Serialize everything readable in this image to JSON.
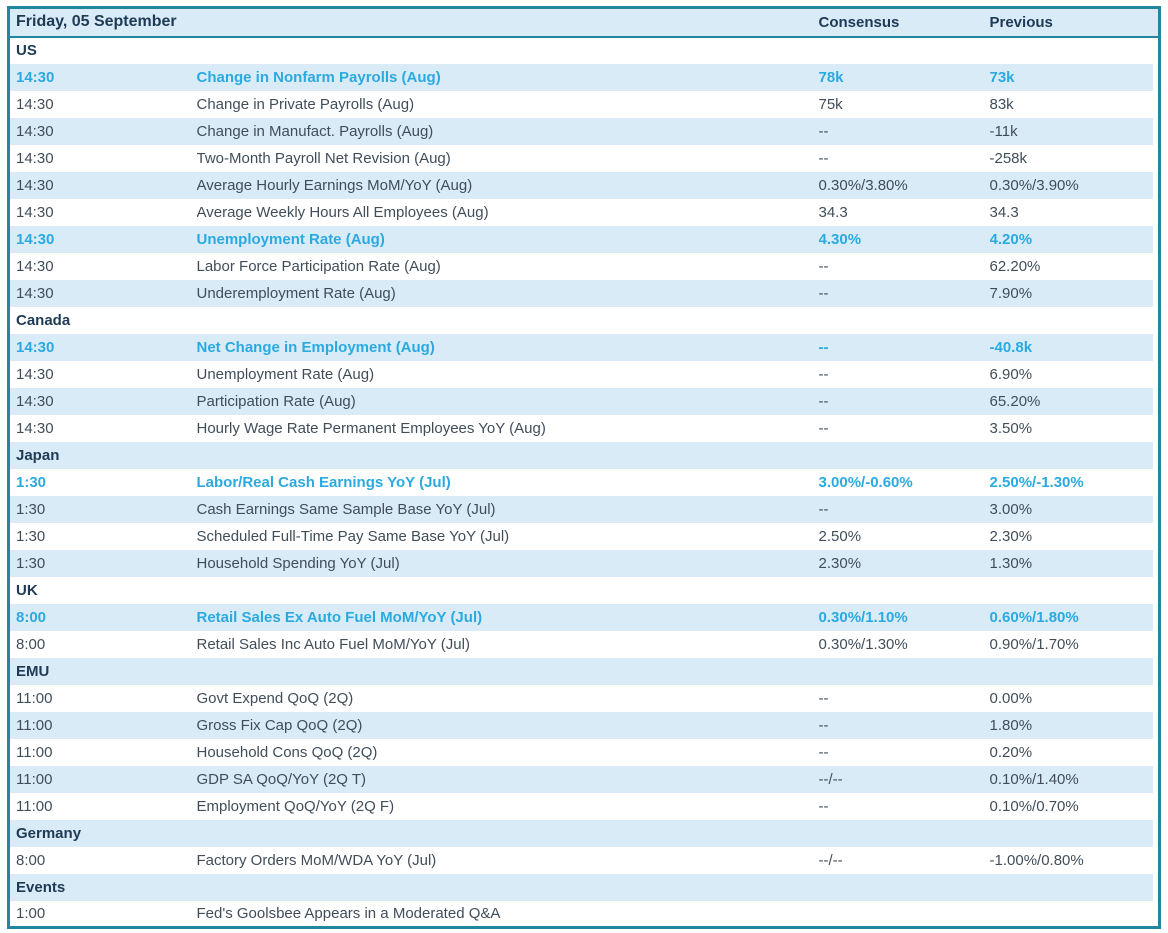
{
  "table": {
    "date_header": "Friday, 05 September",
    "columns": {
      "consensus": "Consensus",
      "previous": "Previous"
    },
    "colors": {
      "border_teal": "#21869e",
      "row_stripe_blue": "#d9ebf7",
      "header_navy": "#1e3a55",
      "body_text": "#414e5a",
      "highlight_cyan": "#2baae1",
      "row_white": "#ffffff"
    },
    "rows": [
      {
        "type": "section",
        "label": "US"
      },
      {
        "type": "event",
        "time": "14:30",
        "event": "Change in Nonfarm Payrolls (Aug)",
        "consensus": "78k",
        "previous": "73k",
        "highlight": true
      },
      {
        "type": "event",
        "time": "14:30",
        "event": "Change in Private Payrolls (Aug)",
        "consensus": "75k",
        "previous": "83k",
        "highlight": false
      },
      {
        "type": "event",
        "time": "14:30",
        "event": "Change in Manufact. Payrolls (Aug)",
        "consensus": "--",
        "previous": "-11k",
        "highlight": false
      },
      {
        "type": "event",
        "time": "14:30",
        "event": "Two-Month Payroll Net Revision (Aug)",
        "consensus": "--",
        "previous": "-258k",
        "highlight": false
      },
      {
        "type": "event",
        "time": "14:30",
        "event": "Average Hourly Earnings MoM/YoY (Aug)",
        "consensus": "0.30%/3.80%",
        "previous": "0.30%/3.90%",
        "highlight": false
      },
      {
        "type": "event",
        "time": "14:30",
        "event": "Average Weekly Hours All Employees (Aug)",
        "consensus": "34.3",
        "previous": "34.3",
        "highlight": false
      },
      {
        "type": "event",
        "time": "14:30",
        "event": "Unemployment Rate (Aug)",
        "consensus": "4.30%",
        "previous": "4.20%",
        "highlight": true
      },
      {
        "type": "event",
        "time": "14:30",
        "event": "Labor Force Participation Rate (Aug)",
        "consensus": "--",
        "previous": "62.20%",
        "highlight": false
      },
      {
        "type": "event",
        "time": "14:30",
        "event": "Underemployment Rate (Aug)",
        "consensus": "--",
        "previous": "7.90%",
        "highlight": false
      },
      {
        "type": "section",
        "label": "Canada"
      },
      {
        "type": "event",
        "time": "14:30",
        "event": "Net Change in Employment (Aug)",
        "consensus": "--",
        "previous": "-40.8k",
        "highlight": true
      },
      {
        "type": "event",
        "time": "14:30",
        "event": "Unemployment Rate (Aug)",
        "consensus": "--",
        "previous": "6.90%",
        "highlight": false
      },
      {
        "type": "event",
        "time": "14:30",
        "event": "Participation Rate (Aug)",
        "consensus": "--",
        "previous": "65.20%",
        "highlight": false
      },
      {
        "type": "event",
        "time": "14:30",
        "event": "Hourly Wage Rate Permanent Employees YoY (Aug)",
        "consensus": "--",
        "previous": "3.50%",
        "highlight": false
      },
      {
        "type": "section",
        "label": "Japan"
      },
      {
        "type": "event",
        "time": "1:30",
        "event": "Labor/Real Cash Earnings YoY (Jul)",
        "consensus": "3.00%/-0.60%",
        "previous": "2.50%/-1.30%",
        "highlight": true
      },
      {
        "type": "event",
        "time": "1:30",
        "event": "Cash Earnings Same Sample Base YoY (Jul)",
        "consensus": "--",
        "previous": "3.00%",
        "highlight": false
      },
      {
        "type": "event",
        "time": "1:30",
        "event": "Scheduled Full-Time Pay Same Base YoY (Jul)",
        "consensus": "2.50%",
        "previous": "2.30%",
        "highlight": false
      },
      {
        "type": "event",
        "time": "1:30",
        "event": "Household Spending YoY (Jul)",
        "consensus": "2.30%",
        "previous": "1.30%",
        "highlight": false
      },
      {
        "type": "section",
        "label": "UK"
      },
      {
        "type": "event",
        "time": "8:00",
        "event": "Retail Sales Ex Auto Fuel MoM/YoY (Jul)",
        "consensus": "0.30%/1.10%",
        "previous": "0.60%/1.80%",
        "highlight": true
      },
      {
        "type": "event",
        "time": "8:00",
        "event": "Retail Sales Inc Auto Fuel MoM/YoY (Jul)",
        "consensus": "0.30%/1.30%",
        "previous": "0.90%/1.70%",
        "highlight": false
      },
      {
        "type": "section",
        "label": "EMU"
      },
      {
        "type": "event",
        "time": "11:00",
        "event": "Govt Expend QoQ (2Q)",
        "consensus": "--",
        "previous": "0.00%",
        "highlight": false
      },
      {
        "type": "event",
        "time": "11:00",
        "event": "Gross Fix Cap QoQ (2Q)",
        "consensus": "--",
        "previous": "1.80%",
        "highlight": false
      },
      {
        "type": "event",
        "time": "11:00",
        "event": "Household Cons QoQ (2Q)",
        "consensus": "--",
        "previous": "0.20%",
        "highlight": false
      },
      {
        "type": "event",
        "time": "11:00",
        "event": "GDP SA QoQ/YoY (2Q T)",
        "consensus": "--/--",
        "previous": "0.10%/1.40%",
        "highlight": false
      },
      {
        "type": "event",
        "time": "11:00",
        "event": "Employment QoQ/YoY (2Q F)",
        "consensus": "--",
        "previous": "0.10%/0.70%",
        "highlight": false
      },
      {
        "type": "section",
        "label": "Germany"
      },
      {
        "type": "event",
        "time": "8:00",
        "event": "Factory Orders MoM/WDA YoY (Jul)",
        "consensus": "--/--",
        "previous": "-1.00%/0.80%",
        "highlight": false
      },
      {
        "type": "section",
        "label": "Events"
      },
      {
        "type": "event",
        "time": "1:00",
        "event": "Fed's Goolsbee Appears in a Moderated Q&A",
        "consensus": "",
        "previous": "",
        "highlight": false
      }
    ]
  }
}
